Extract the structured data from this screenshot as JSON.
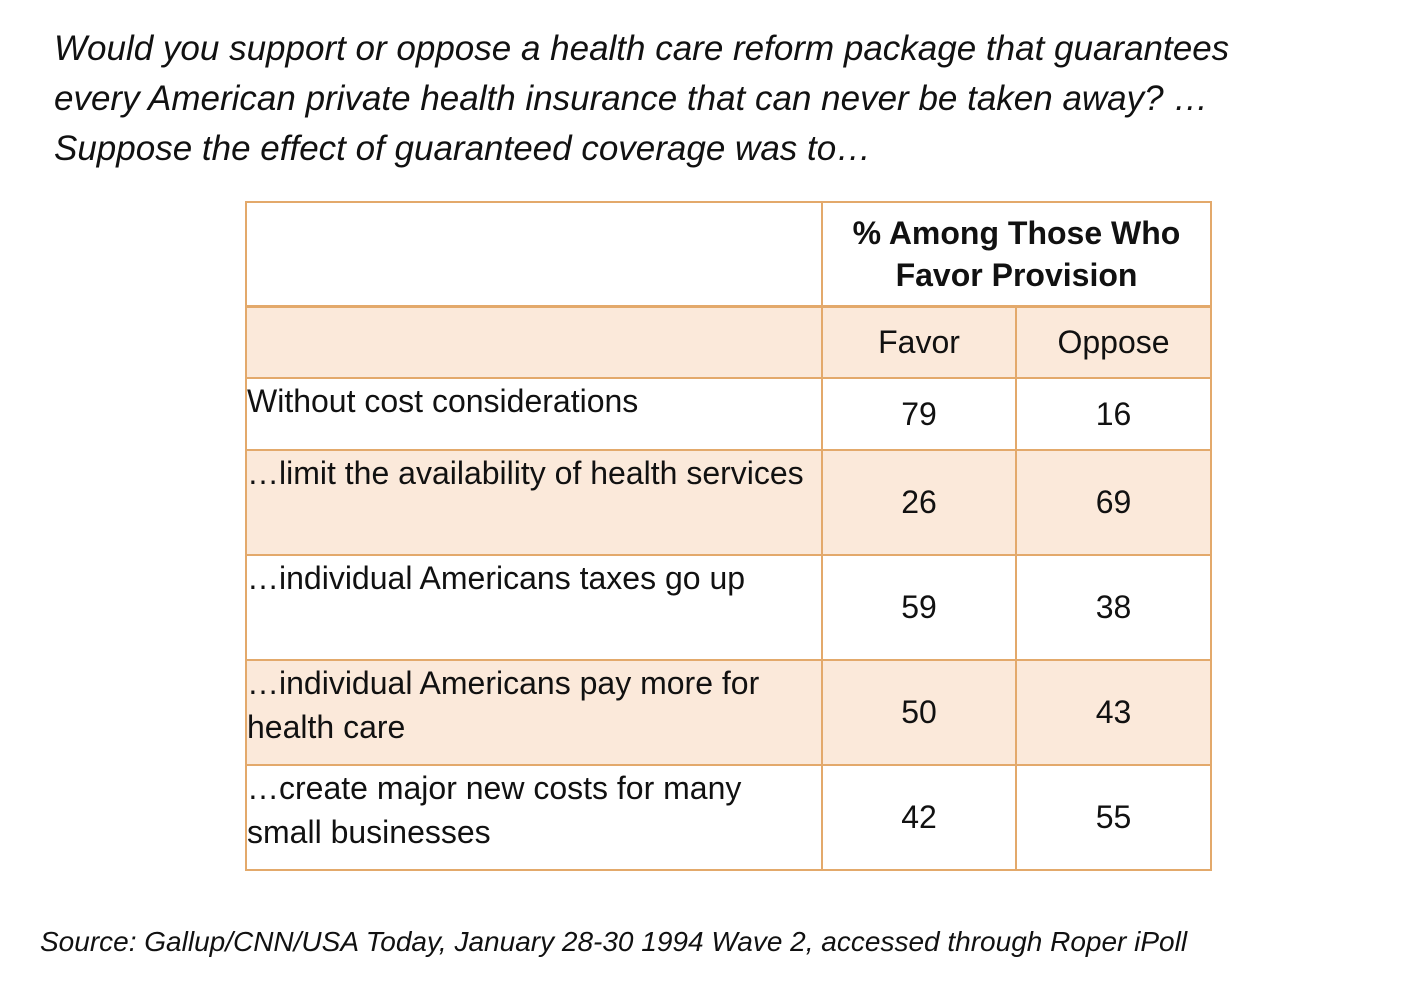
{
  "chart_data": {
    "type": "table",
    "title_lines": [
      "Would you support or oppose a health care reform package that guarantees",
      "every American private health insurance that can never be taken away? …",
      "Suppose the effect of guaranteed coverage was to…"
    ],
    "column_group": "% Among Those Who Favor Provision",
    "columns": [
      "Favor",
      "Oppose"
    ],
    "rows": [
      {
        "label": "Without cost considerations",
        "favor": "79",
        "oppose": "16"
      },
      {
        "label": "…limit the availability of health services",
        "favor": "26",
        "oppose": "69"
      },
      {
        "label": "…individual Americans taxes go up",
        "favor": "59",
        "oppose": "38"
      },
      {
        "label": "…individual Americans pay more for health care",
        "favor": "50",
        "oppose": "43"
      },
      {
        "label": "…create major new costs for many small businesses",
        "favor": "42",
        "oppose": "55"
      }
    ],
    "source": "Source: Gallup/CNN/USA Today, January 28-30 1994 Wave 2, accessed through Roper iPoll"
  },
  "colors": {
    "border": "#e3a96b",
    "shade": "#fbe9da"
  }
}
